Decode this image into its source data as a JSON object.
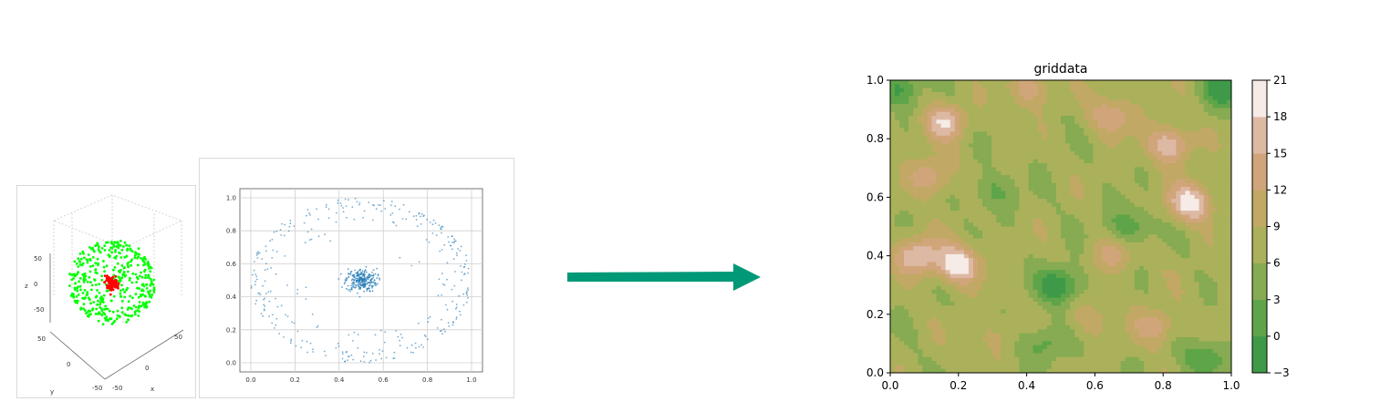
{
  "chart_data": [
    {
      "type": "scatter",
      "projection": "3d",
      "title": "",
      "series": [
        {
          "color": "#00ff00",
          "shape": "sphere-shell",
          "radius": 50
        },
        {
          "color": "#ff0000",
          "shape": "center-cluster",
          "radius": 8
        }
      ],
      "xlabel": "x",
      "ylabel": "y",
      "zlabel": "z",
      "x_ticks": [
        "-50",
        "0",
        "50"
      ],
      "y_ticks": [
        "50",
        "0",
        "-50"
      ],
      "z_ticks": [
        "50",
        "0",
        "-50"
      ]
    },
    {
      "type": "scatter",
      "title": "",
      "series": [
        {
          "color": "#1f77b4",
          "pattern": "ring",
          "center": [
            0.5,
            0.5
          ],
          "radius": 0.5
        },
        {
          "color": "#1f77b4",
          "pattern": "cluster",
          "center": [
            0.5,
            0.5
          ],
          "spread": 0.04
        }
      ],
      "xlim": [
        0,
        1
      ],
      "ylim": [
        0,
        1
      ],
      "grid": true,
      "x_ticks": [
        "0.0",
        "0.2",
        "0.4",
        "0.6",
        "0.8",
        "1.0"
      ],
      "y_ticks": [
        "0.0",
        "0.2",
        "0.4",
        "0.6",
        "0.8",
        "1.0"
      ]
    },
    {
      "type": "heatmap",
      "style": "filled-contour",
      "title": "griddata",
      "xlim": [
        0,
        1
      ],
      "ylim": [
        0,
        1
      ],
      "x_ticks": [
        "0.0",
        "0.2",
        "0.4",
        "0.6",
        "0.8",
        "1.0"
      ],
      "y_ticks": [
        "0.0",
        "0.2",
        "0.4",
        "0.6",
        "0.8",
        "1.0"
      ],
      "levels": [
        -3,
        0,
        3,
        6,
        9,
        12,
        15,
        18,
        21
      ],
      "colorbar_ticks": [
        "21",
        "18",
        "15",
        "12",
        "9",
        "6",
        "3",
        "0",
        "−3"
      ],
      "colormap": [
        "#3e9a48",
        "#5ea448",
        "#86ab52",
        "#abb15a",
        "#c2a865",
        "#d1a57a",
        "#ddb9a4",
        "#f6ebe6"
      ],
      "peaks": [
        {
          "x": 0.2,
          "y": 0.37,
          "value": 21
        },
        {
          "x": 0.08,
          "y": 0.4,
          "value": 18
        },
        {
          "x": 0.88,
          "y": 0.58,
          "value": 20
        },
        {
          "x": 0.16,
          "y": 0.86,
          "value": 17
        },
        {
          "x": 0.41,
          "y": 0.97,
          "value": 14
        },
        {
          "x": 0.65,
          "y": 0.88,
          "value": 15
        },
        {
          "x": 0.82,
          "y": 0.78,
          "value": 18
        },
        {
          "x": 0.12,
          "y": 0.67,
          "value": 15
        },
        {
          "x": 0.65,
          "y": 0.4,
          "value": 13
        },
        {
          "x": 0.78,
          "y": 0.16,
          "value": 14
        },
        {
          "x": 0.58,
          "y": 0.18,
          "value": 11
        },
        {
          "x": 0.3,
          "y": 0.12,
          "value": 10
        },
        {
          "x": 0.1,
          "y": 0.05,
          "value": 7
        }
      ],
      "troughs": [
        {
          "x": 0.5,
          "y": 0.3,
          "value": -3
        },
        {
          "x": 0.7,
          "y": 0.5,
          "value": 0
        },
        {
          "x": 0.98,
          "y": 0.97,
          "value": -2
        },
        {
          "x": 0.02,
          "y": 0.97,
          "value": -1
        },
        {
          "x": 0.45,
          "y": 0.1,
          "value": 1
        },
        {
          "x": 0.92,
          "y": 0.05,
          "value": 0
        },
        {
          "x": 0.3,
          "y": 0.62,
          "value": 2
        }
      ],
      "base_value": 7
    }
  ],
  "arrow_color": "#009977"
}
